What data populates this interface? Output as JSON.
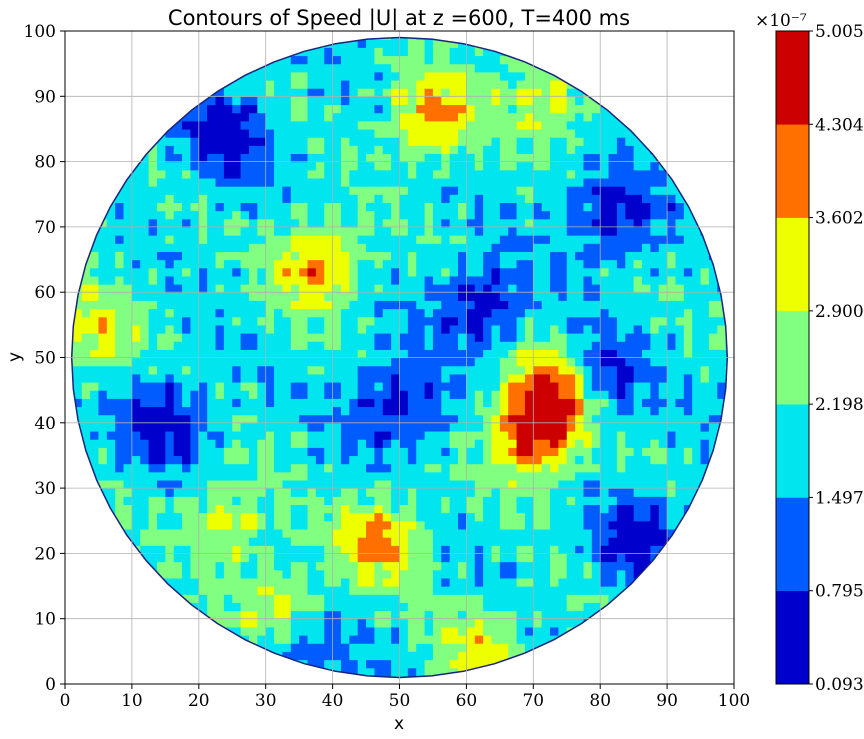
{
  "chart_data": {
    "type": "contour",
    "title": "Contours of Speed |U| at z =600, T=400 ms",
    "xlabel": "x",
    "ylabel": "y",
    "xlim": [
      0,
      100
    ],
    "ylim": [
      0,
      100
    ],
    "xticks": [
      "0",
      "10",
      "20",
      "30",
      "40",
      "50",
      "60",
      "70",
      "80",
      "90",
      "100"
    ],
    "yticks": [
      "0",
      "10",
      "20",
      "30",
      "40",
      "50",
      "60",
      "70",
      "80",
      "90",
      "100"
    ],
    "grid": true,
    "domain_shape": "circle",
    "domain_center": [
      50,
      50
    ],
    "domain_radius": 49,
    "colorbar": {
      "multiplier": "×10⁻⁷",
      "levels": [
        "0.093",
        "0.795",
        "1.497",
        "2.198",
        "2.900",
        "3.602",
        "4.304",
        "5.005"
      ],
      "level_values": [
        0.093,
        0.795,
        1.497,
        2.198,
        2.9,
        3.602,
        4.304,
        5.005
      ],
      "colors": [
        "#0000cc",
        "#005cff",
        "#00e5ee",
        "#80ff80",
        "#eeff00",
        "#ff7000",
        "#cc0000"
      ]
    },
    "hotspots": [
      {
        "x": 38,
        "y": 64,
        "level": 5
      },
      {
        "x": 55,
        "y": 87,
        "level": 5
      },
      {
        "x": 70,
        "y": 38,
        "level": 6
      },
      {
        "x": 73,
        "y": 45,
        "level": 6
      },
      {
        "x": 4,
        "y": 54,
        "level": 4
      },
      {
        "x": 72,
        "y": 90,
        "level": 4
      },
      {
        "x": 47,
        "y": 22,
        "level": 5
      },
      {
        "x": 62,
        "y": 6,
        "level": 4
      },
      {
        "x": 33,
        "y": 11,
        "level": 5
      },
      {
        "x": 24,
        "y": 25,
        "level": 4
      }
    ],
    "coldspots": [
      {
        "x": 50,
        "y": 43
      },
      {
        "x": 24,
        "y": 84
      },
      {
        "x": 82,
        "y": 72
      },
      {
        "x": 86,
        "y": 22
      },
      {
        "x": 35,
        "y": 7
      },
      {
        "x": 15,
        "y": 40
      },
      {
        "x": 62,
        "y": 58
      },
      {
        "x": 80,
        "y": 47
      }
    ]
  }
}
